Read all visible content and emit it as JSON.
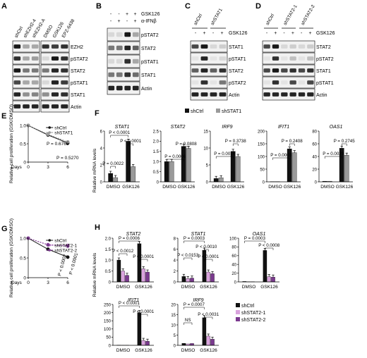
{
  "colors": {
    "shctrl": "#111111",
    "shstat1": "#9a9a9a",
    "shstat2_1": "#d9a3dd",
    "shstat2_2": "#7b3a8f",
    "axis": "#000000",
    "band_bg": "#f1f1f1"
  },
  "panels": {
    "A": {
      "letter": "A",
      "lanes_left": [
        "shCtrl",
        "shEZH2-4",
        "shEZH2-A"
      ],
      "lanes_right": [
        "DMSO",
        "GSK126",
        "EPZ-6438"
      ],
      "rows": [
        "EZH2",
        "pSTAT2",
        "STAT2",
        "pSTAT1",
        "STAT1",
        "Actin"
      ]
    },
    "B": {
      "letter": "B",
      "treat_rows": [
        {
          "label": "GSK126",
          "marks": [
            "-",
            "-",
            "+",
            "+"
          ]
        },
        {
          "label": "α-IFNβ",
          "marks": [
            "-",
            "+",
            "-",
            "+"
          ]
        }
      ],
      "rows": [
        "pSTAT2",
        "STAT2",
        "pSTAT1",
        "STAT1",
        "Actin"
      ]
    },
    "C": {
      "letter": "C",
      "lanes": [
        "shCtrl",
        "shSTAT1"
      ],
      "treat_label": "GSK126",
      "treat_marks": [
        "-",
        "+",
        "-",
        "+"
      ],
      "rows": [
        "STAT1",
        "pSTAT1",
        "STAT2",
        "pSTAT2",
        "Actin"
      ]
    },
    "D": {
      "letter": "D",
      "lanes": [
        "shCtrl",
        "shSTAT2-1",
        "shSTAT2-2"
      ],
      "treat_label": "GSK126",
      "treat_marks": [
        "-",
        "+",
        "-",
        "+",
        "-",
        "+"
      ],
      "rows": [
        "STAT2",
        "pSTAT2",
        "STAT1",
        "pSTAT1",
        "Actin"
      ]
    },
    "E": {
      "letter": "E"
    },
    "F": {
      "letter": "F"
    },
    "G": {
      "letter": "G"
    },
    "H": {
      "letter": "H"
    }
  },
  "chart_data": [
    {
      "id": "E",
      "type": "line",
      "ylabel": "Relative cell proliferation (GSK/DMSO)",
      "xlabel": "Days",
      "x": [
        0,
        3,
        6
      ],
      "xticks": [
        "0",
        "3",
        "6"
      ],
      "ylim": [
        0,
        1
      ],
      "yticks": [
        "0",
        "0.5",
        "1.0"
      ],
      "series": [
        {
          "name": "shCtrl",
          "values": [
            1.0,
            0.74,
            0.52
          ]
        },
        {
          "name": "shSTAT1",
          "values": [
            1.0,
            0.76,
            0.55
          ]
        }
      ],
      "annotations": [
        "P = 0.6765",
        "P = 0.5270"
      ]
    },
    {
      "id": "F",
      "type": "bar",
      "legend": [
        "shCtrl",
        "shSTAT1"
      ],
      "ylabel": "Relative mRNA levels",
      "categories": [
        "DMSO",
        "GSK126"
      ],
      "subplots": [
        {
          "title": "STAT1",
          "ylim": [
            0,
            6
          ],
          "yticks": [
            "0",
            "2",
            "4",
            "6"
          ],
          "series": [
            {
              "name": "shCtrl",
              "values": [
                1.0,
                4.8
              ]
            },
            {
              "name": "shSTAT1",
              "values": [
                0.5,
                1.8
              ]
            }
          ],
          "pvalues": [
            "P < 0.0001",
            "P < 0.0001",
            "P = 0.0022"
          ]
        },
        {
          "title": "STAT2",
          "ylim": [
            0,
            2.5
          ],
          "yticks": [
            "0",
            "0.5",
            "1.0",
            "1.5",
            "2.0",
            "2.5"
          ],
          "series": [
            {
              "name": "shCtrl",
              "values": [
                1.0,
                1.75
              ]
            },
            {
              "name": "shSTAT1",
              "values": [
                1.0,
                1.65
              ]
            }
          ],
          "pvalues": [
            "P = 0.0808",
            "P = 0.0006"
          ]
        },
        {
          "title": "IRF9",
          "ylim": [
            0,
            15
          ],
          "yticks": [
            "0",
            "5",
            "10",
            "15"
          ],
          "series": [
            {
              "name": "shCtrl",
              "values": [
                1.0,
                9.0
              ]
            },
            {
              "name": "shSTAT1",
              "values": [
                1.2,
                7.5
              ]
            }
          ],
          "pvalues": [
            "P = 0.3738",
            "P = 0.0016"
          ]
        },
        {
          "title": "IFIT1",
          "ylim": [
            0,
            200
          ],
          "yticks": [
            "0",
            "50",
            "100",
            "150",
            "200"
          ],
          "series": [
            {
              "name": "shCtrl",
              "values": [
                1.0,
                130
              ]
            },
            {
              "name": "shSTAT1",
              "values": [
                1.0,
                115
              ]
            }
          ],
          "pvalues": [
            "P = 0.2408",
            "P = 0.0003"
          ]
        },
        {
          "title": "OAS1",
          "ylim": [
            0,
            80
          ],
          "yticks": [
            "0",
            "20",
            "40",
            "60",
            "80"
          ],
          "series": [
            {
              "name": "shCtrl",
              "values": [
                1.0,
                53
              ]
            },
            {
              "name": "shSTAT1",
              "values": [
                1.0,
                42
              ]
            }
          ],
          "pvalues": [
            "P = 0.2745",
            "P = 0.0029"
          ]
        }
      ]
    },
    {
      "id": "G",
      "type": "line",
      "ylabel": "Relative cell proliferation (GSK/DMSO)",
      "xlabel": "Days",
      "x": [
        0,
        3,
        6
      ],
      "xticks": [
        "0",
        "3",
        "6"
      ],
      "ylim": [
        0,
        1
      ],
      "yticks": [
        "0",
        "0.5",
        "1.0"
      ],
      "series": [
        {
          "name": "shCtrl",
          "values": [
            1.0,
            0.72,
            0.52
          ]
        },
        {
          "name": "shSTAT2-1",
          "values": [
            1.0,
            0.84,
            0.82
          ]
        },
        {
          "name": "shSTAT2-2",
          "values": [
            1.0,
            0.83,
            0.8
          ]
        }
      ],
      "annotations": [
        "P < 0.0002",
        "P < 0.0001"
      ]
    },
    {
      "id": "H",
      "type": "bar",
      "legend": [
        "shCtrl",
        "shSTAT2-1",
        "shSTAT2-2"
      ],
      "ylabel": "Relative mRNA levels",
      "categories": [
        "DMSO",
        "GSK126"
      ],
      "subplots": [
        {
          "title": "STAT2",
          "ylim": [
            0,
            2.0
          ],
          "yticks": [
            "0",
            "0.5",
            "1.0",
            "1.5",
            "2.0"
          ],
          "series": [
            {
              "name": "shCtrl",
              "values": [
                1.0,
                1.75
              ]
            },
            {
              "name": "shSTAT2-1",
              "values": [
                0.5,
                0.6
              ]
            },
            {
              "name": "shSTAT2-2",
              "values": [
                0.3,
                0.45
              ]
            }
          ],
          "pvalues": [
            "P = 0.0006",
            "P < 0.0012",
            "P < 0.0001"
          ]
        },
        {
          "title": "STAT1",
          "ylim": [
            0,
            8
          ],
          "yticks": [
            "0",
            "2",
            "4",
            "6",
            "8"
          ],
          "series": [
            {
              "name": "shCtrl",
              "values": [
                1.0,
                5.8
              ]
            },
            {
              "name": "shSTAT2-1",
              "values": [
                0.6,
                1.8
              ]
            },
            {
              "name": "shSTAT2-2",
              "values": [
                0.7,
                1.5
              ]
            }
          ],
          "pvalues": [
            "P = 0.0003",
            "P < 0.0153",
            "P < 0.0010",
            "P < 0.0001"
          ]
        },
        {
          "title": "OAS1",
          "ylim": [
            0,
            100
          ],
          "yticks": [
            "0",
            "20",
            "40",
            "60",
            "80",
            "100"
          ],
          "series": [
            {
              "name": "shCtrl",
              "values": [
                1.0,
                72
              ]
            },
            {
              "name": "shSTAT2-1",
              "values": [
                0.5,
                12
              ]
            },
            {
              "name": "shSTAT2-2",
              "values": [
                0.5,
                11
              ]
            }
          ],
          "pvalues": [
            "P = 0.0003",
            "P < 0.0008"
          ]
        },
        {
          "title": "IFIT1",
          "ylim": [
            0,
            250
          ],
          "yticks": [
            "0",
            "50",
            "100",
            "150",
            "200",
            "250"
          ],
          "series": [
            {
              "name": "shCtrl",
              "values": [
                1.0,
                200
              ]
            },
            {
              "name": "shSTAT2-1",
              "values": [
                0.5,
                30
              ]
            },
            {
              "name": "shSTAT2-2",
              "values": [
                0.5,
                25
              ]
            }
          ],
          "pvalues": [
            "P < 0.0001",
            "P < 0.0001"
          ]
        },
        {
          "title": "IRF9",
          "ylim": [
            0,
            20
          ],
          "yticks": [
            "0",
            "5",
            "10",
            "15",
            "20"
          ],
          "series": [
            {
              "name": "shCtrl",
              "values": [
                1.0,
                13.5
              ]
            },
            {
              "name": "shSTAT2-1",
              "values": [
                0.7,
                4.5
              ]
            },
            {
              "name": "shSTAT2-2",
              "values": [
                0.9,
                3.0
              ]
            }
          ],
          "pvalues": [
            "P = 0.0007",
            "NS",
            "P < 0.0031"
          ]
        }
      ]
    }
  ]
}
